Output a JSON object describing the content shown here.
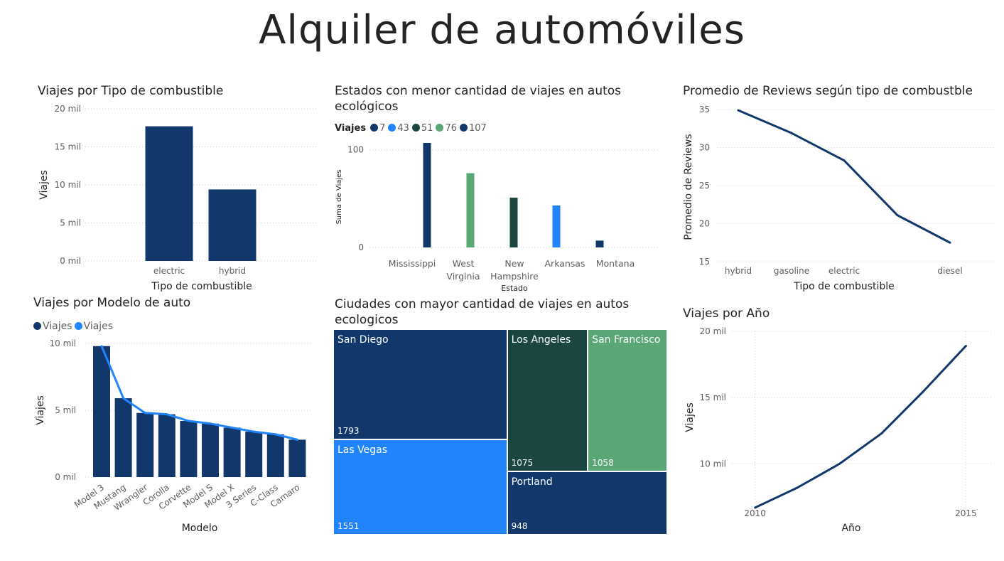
{
  "page": {
    "title": "Alquiler de automóviles"
  },
  "colors": {
    "navy": "#12386b",
    "blue": "#2284fa",
    "teal": "#1b4540",
    "green": "#5ba676",
    "line": "#12386b",
    "grid": "#d0d0d0"
  },
  "chart_data": [
    {
      "id": "fuel",
      "type": "bar",
      "title": "Viajes por Tipo de combustible",
      "categories": [
        "electric",
        "hybrid"
      ],
      "values": [
        17700,
        9400
      ],
      "xlabel": "Tipo de combustible",
      "ylabel": "Viajes",
      "ylim": [
        0,
        20000
      ],
      "yticks": [
        0,
        5000,
        10000,
        15000,
        20000
      ],
      "ytick_labels": [
        "0 mil",
        "5 mil",
        "10 mil",
        "15 mil",
        "20 mil"
      ],
      "grid": true
    },
    {
      "id": "states",
      "type": "bar",
      "title": "Estados con menor cantidad de viajes en autos ecológicos",
      "legend_title": "Viajes",
      "legend": [
        {
          "label": "7",
          "color": "#12386b"
        },
        {
          "label": "43",
          "color": "#2284fa"
        },
        {
          "label": "51",
          "color": "#1b4540"
        },
        {
          "label": "76",
          "color": "#5ba676"
        },
        {
          "label": "107",
          "color": "#12386b"
        }
      ],
      "categories": [
        "Mississippi",
        "West Virginia",
        "New Hampshire",
        "Arkansas",
        "Montana"
      ],
      "category_lines": [
        [
          "Mississippi"
        ],
        [
          "West",
          "Virginia"
        ],
        [
          "New",
          "Hampshire"
        ],
        [
          "Arkansas"
        ],
        [
          "Montana"
        ]
      ],
      "values": [
        107,
        76,
        51,
        43,
        7
      ],
      "bar_colors": [
        "#12386b",
        "#5ba676",
        "#1b4540",
        "#2284fa",
        "#12386b"
      ],
      "xlabel": "Estado",
      "ylabel": "Suma de Viajes",
      "ylim": [
        0,
        115
      ],
      "yticks": [
        0,
        100
      ],
      "grid": true
    },
    {
      "id": "reviews",
      "type": "line",
      "title": "Promedio de Reviews según tipo de combustble",
      "categories": [
        "hybrid",
        "gasoline",
        "electric",
        "",
        "diesel"
      ],
      "values": [
        34.9,
        31.9,
        28.3,
        21.1,
        17.5
      ],
      "xlabel": "Tipo de combustible",
      "ylabel": "Promedio de Reviews",
      "ylim": [
        15,
        35
      ],
      "yticks": [
        15,
        20,
        25,
        30,
        35
      ],
      "grid": true
    },
    {
      "id": "models",
      "type": "bar",
      "title": "Viajes por Modelo de auto",
      "legend": [
        {
          "label": "Viajes",
          "color": "#12386b"
        },
        {
          "label": "Viajes",
          "color": "#2284fa"
        }
      ],
      "categories": [
        "Model 3",
        "Mustang",
        "Wrangler",
        "Corolla",
        "Corvette",
        "Model S",
        "Model X",
        "3 Series",
        "C-Class",
        "Camaro"
      ],
      "series": [
        {
          "name": "Viajes",
          "type": "bar",
          "values": [
            9800,
            5900,
            4800,
            4700,
            4200,
            4000,
            3700,
            3400,
            3200,
            2800
          ]
        },
        {
          "name": "Viajes",
          "type": "line",
          "values": [
            9800,
            5900,
            4800,
            4700,
            4200,
            4000,
            3700,
            3400,
            3200,
            2800
          ]
        }
      ],
      "xlabel": "Modelo",
      "ylabel": "Viajes",
      "ylim": [
        0,
        10000
      ],
      "yticks": [
        0,
        5000,
        10000
      ],
      "ytick_labels": [
        "0 mil",
        "5 mil",
        "10 mil"
      ],
      "grid": true
    },
    {
      "id": "cities",
      "type": "treemap",
      "title": "Ciudades con mayor cantidad de viajes en autos ecologicos",
      "items": [
        {
          "label": "San Diego",
          "value": 1793,
          "color": "#12386b"
        },
        {
          "label": "Las Vegas",
          "value": 1551,
          "color": "#2284fa"
        },
        {
          "label": "Los Angeles",
          "value": 1075,
          "color": "#1b4540"
        },
        {
          "label": "San Francisco",
          "value": 1058,
          "color": "#5ba676"
        },
        {
          "label": "Portland",
          "value": 948,
          "color": "#12386b"
        }
      ]
    },
    {
      "id": "years",
      "type": "line",
      "title": "Viajes por Año",
      "x": [
        2010,
        2011,
        2012,
        2013,
        2014,
        2015
      ],
      "values": [
        6700,
        8200,
        10000,
        12300,
        15500,
        18900
      ],
      "xticks": [
        2010,
        2015
      ],
      "xlabel": "Año",
      "ylabel": "Viajes",
      "xlim": [
        2009.45,
        2015.6
      ],
      "ylim": [
        6000,
        20000
      ],
      "yticks": [
        10000,
        15000,
        20000
      ],
      "ytick_labels": [
        "10 mil",
        "15 mil",
        "20 mil"
      ],
      "grid": true
    }
  ]
}
